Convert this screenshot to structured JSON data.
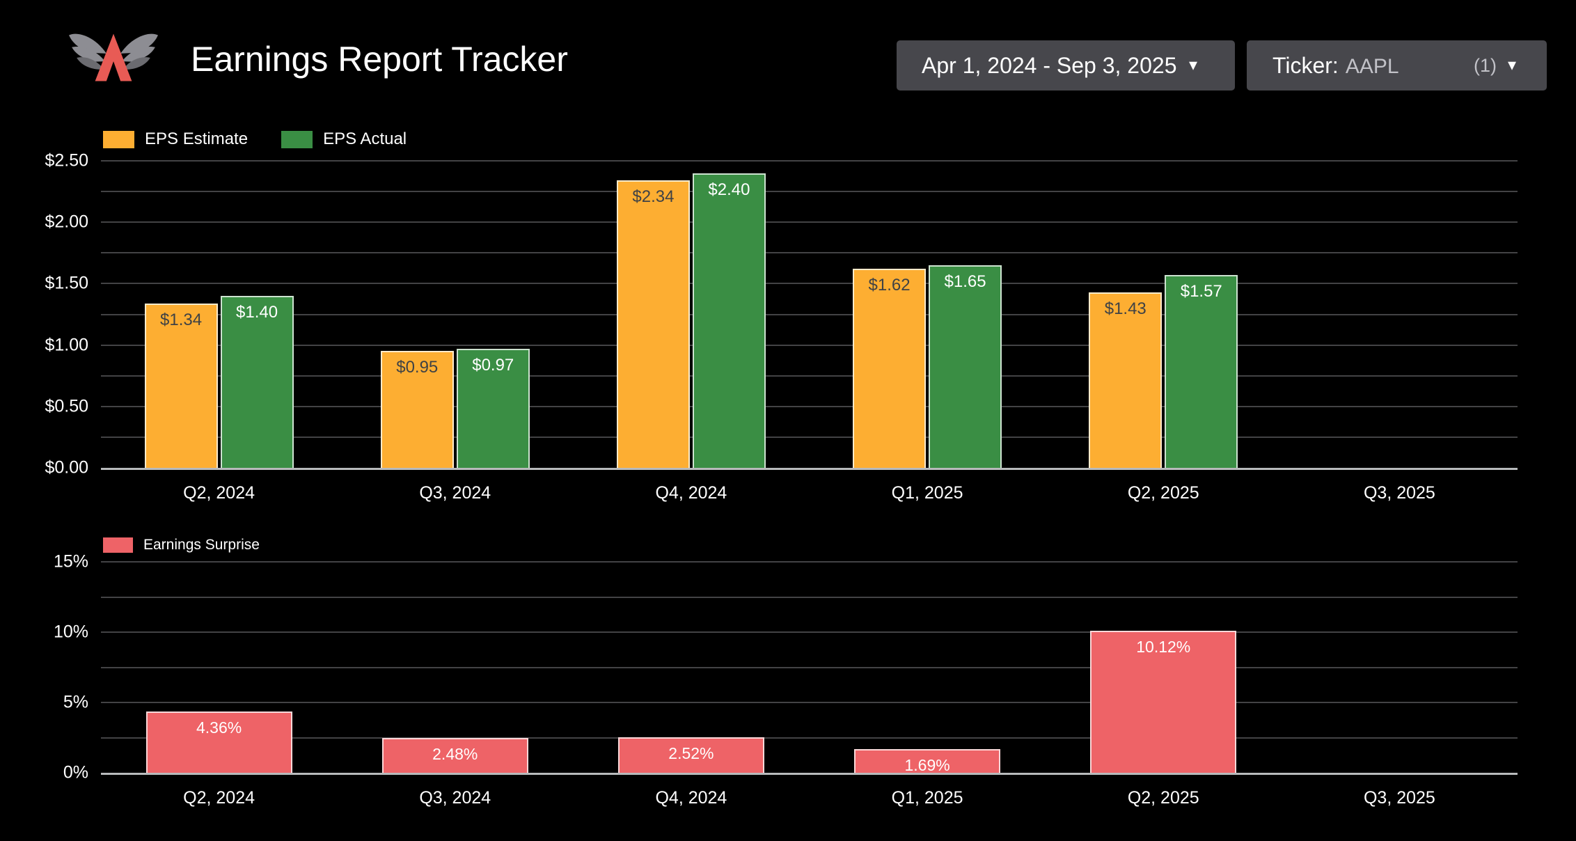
{
  "header": {
    "title": "Earnings Report Tracker",
    "logo": "winged-a-logo",
    "date_range": "Apr 1, 2024 - Sep 3, 2025",
    "ticker_label": "Ticker:",
    "ticker_value": "AAPL",
    "ticker_count": "(1)",
    "caret": "▾"
  },
  "colors": {
    "background": "#000000",
    "panel": "#47474c",
    "eps_estimate": "#fdae32",
    "eps_actual": "#3a8e44",
    "earnings_surprise": "#ee6367",
    "gridline": "#434345",
    "axis_line": "#b8babc",
    "logo_red": "#e85b55",
    "logo_gray": "#8d8d93"
  },
  "chart_data": [
    {
      "type": "bar",
      "title": "",
      "categories": [
        "Q2, 2024",
        "Q3, 2024",
        "Q4, 2024",
        "Q1, 2025",
        "Q2, 2025",
        "Q3, 2025"
      ],
      "series": [
        {
          "name": "EPS Estimate",
          "color": "#fdae32",
          "label_color": "#3f4245",
          "values": [
            1.34,
            0.95,
            2.34,
            1.62,
            1.43,
            null
          ],
          "labels": [
            "$1.34",
            "$0.95",
            "$2.34",
            "$1.62",
            "$1.43",
            null
          ]
        },
        {
          "name": "EPS Actual",
          "color": "#3a8e44",
          "label_color": "#ffffff",
          "values": [
            1.4,
            0.97,
            2.4,
            1.65,
            1.57,
            null
          ],
          "labels": [
            "$1.40",
            "$0.97",
            "$2.40",
            "$1.65",
            "$1.57",
            null
          ]
        }
      ],
      "ylim": [
        0,
        2.5
      ],
      "grid_step": 0.25,
      "yticks": [
        {
          "value": 0.0,
          "label": "$0.00"
        },
        {
          "value": 0.5,
          "label": "$0.50"
        },
        {
          "value": 1.0,
          "label": "$1.00"
        },
        {
          "value": 1.5,
          "label": "$1.50"
        },
        {
          "value": 2.0,
          "label": "$2.00"
        },
        {
          "value": 2.5,
          "label": "$2.50"
        }
      ],
      "xlabel": "",
      "ylabel": "",
      "grid": true,
      "legend_position": "top-left"
    },
    {
      "type": "bar",
      "title": "",
      "categories": [
        "Q2, 2024",
        "Q3, 2024",
        "Q4, 2024",
        "Q1, 2025",
        "Q2, 2025",
        "Q3, 2025"
      ],
      "series": [
        {
          "name": "Earnings Surprise",
          "color": "#ee6367",
          "label_color": "#ffffff",
          "values": [
            4.36,
            2.48,
            2.52,
            1.69,
            10.12,
            null
          ],
          "labels": [
            "4.36%",
            "2.48%",
            "2.52%",
            "1.69%",
            "10.12%",
            null
          ]
        }
      ],
      "ylim": [
        0,
        15
      ],
      "grid_step": 2.5,
      "yticks": [
        {
          "value": 0,
          "label": "0%"
        },
        {
          "value": 5,
          "label": "5%"
        },
        {
          "value": 10,
          "label": "10%"
        },
        {
          "value": 15,
          "label": "15%"
        }
      ],
      "xlabel": "",
      "ylabel": "",
      "grid": true,
      "legend_position": "top-left"
    }
  ]
}
